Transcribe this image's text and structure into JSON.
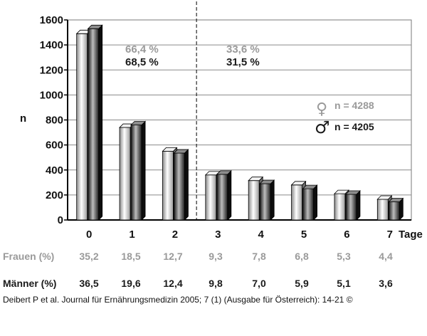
{
  "chart_data": {
    "type": "bar",
    "ylabel": "n",
    "xlabel": "Tage",
    "ylim": [
      0,
      1600
    ],
    "yticks": [
      0,
      200,
      400,
      600,
      800,
      1000,
      1200,
      1400,
      1600
    ],
    "categories": [
      "0",
      "1",
      "2",
      "3",
      "4",
      "5",
      "6",
      "7"
    ],
    "series": [
      {
        "name": "n = 4288",
        "color": "#d4d4d4",
        "values": [
          1490,
          740,
          550,
          360,
          315,
          280,
          210,
          165
        ]
      },
      {
        "name": "n = 4205",
        "color": "#2e2e2e",
        "values": [
          1530,
          760,
          535,
          365,
          290,
          250,
          205,
          145
        ]
      }
    ],
    "annotations": {
      "left_frauen": "66,4 %",
      "left_maenner": "68,5 %",
      "right_frauen": "33,6 %",
      "right_maenner": "31,5 %"
    },
    "legend": [
      {
        "symbol": "♀",
        "text": "n = 4288",
        "color": "#9a9a9a"
      },
      {
        "symbol": "♂",
        "text": "n = 4205",
        "color": "#1a1a1a"
      }
    ],
    "grid": true,
    "divider_after_category": "2"
  },
  "table": {
    "frauen_label": "Frauen (%)",
    "maenner_label": "Männer (%)",
    "frauen": [
      "35,2",
      "18,5",
      "12,7",
      "9,3",
      "7,8",
      "6,8",
      "5,3",
      "4,4"
    ],
    "maenner": [
      "36,5",
      "19,6",
      "12,4",
      "9,8",
      "7,0",
      "5,9",
      "5,1",
      "3,6"
    ]
  },
  "caption": "Deibert P et al. Journal für Ernährungsmedizin 2005; 7 (1) (Ausgabe für Österreich): 14-21 ©"
}
